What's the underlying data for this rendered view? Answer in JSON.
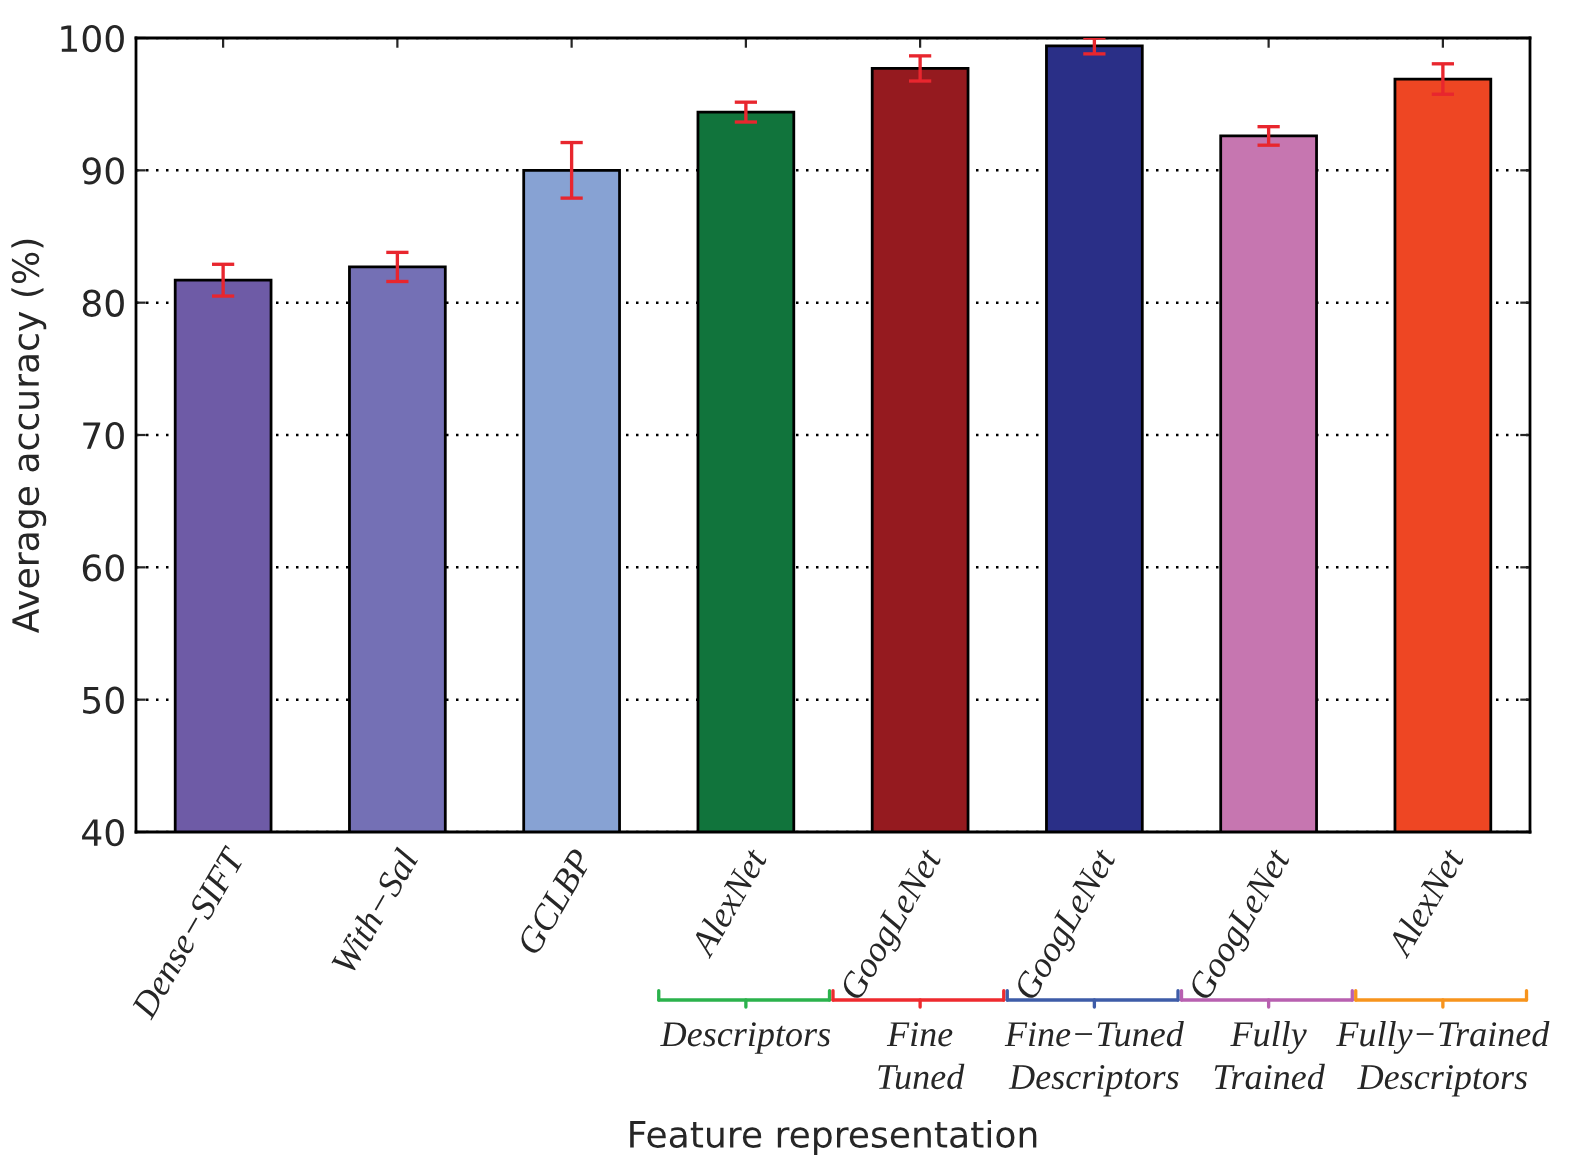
{
  "chart_data": {
    "type": "bar",
    "xlabel": "Feature representation",
    "ylabel": "Average accuracy (%)",
    "categories": [
      "Dense−SIFT",
      "With−Sal",
      "GCLBP",
      "AlexNet",
      "GoogLeNet",
      "GoogLeNet",
      "GoogLeNet",
      "AlexNet"
    ],
    "values": [
      81.7,
      82.7,
      90.0,
      94.4,
      97.7,
      99.4,
      92.6,
      96.9
    ],
    "errors": [
      1.2,
      1.1,
      2.1,
      0.75,
      0.95,
      0.6,
      0.7,
      1.15
    ],
    "colors": [
      "#6e5ba6",
      "#7470b5",
      "#87a2d3",
      "#11743c",
      "#951a1f",
      "#2a2f87",
      "#c676b0",
      "#ee4623"
    ],
    "ylim": [
      40,
      100
    ],
    "yticks": [
      40,
      50,
      60,
      70,
      80,
      90,
      100
    ],
    "grid": "y",
    "annotations": [
      "Descriptors",
      "Fine\nTuned",
      "Fine−Tuned\nDescriptors",
      "Fully\nTrained",
      "Fully−Trained\nDescriptors"
    ]
  }
}
